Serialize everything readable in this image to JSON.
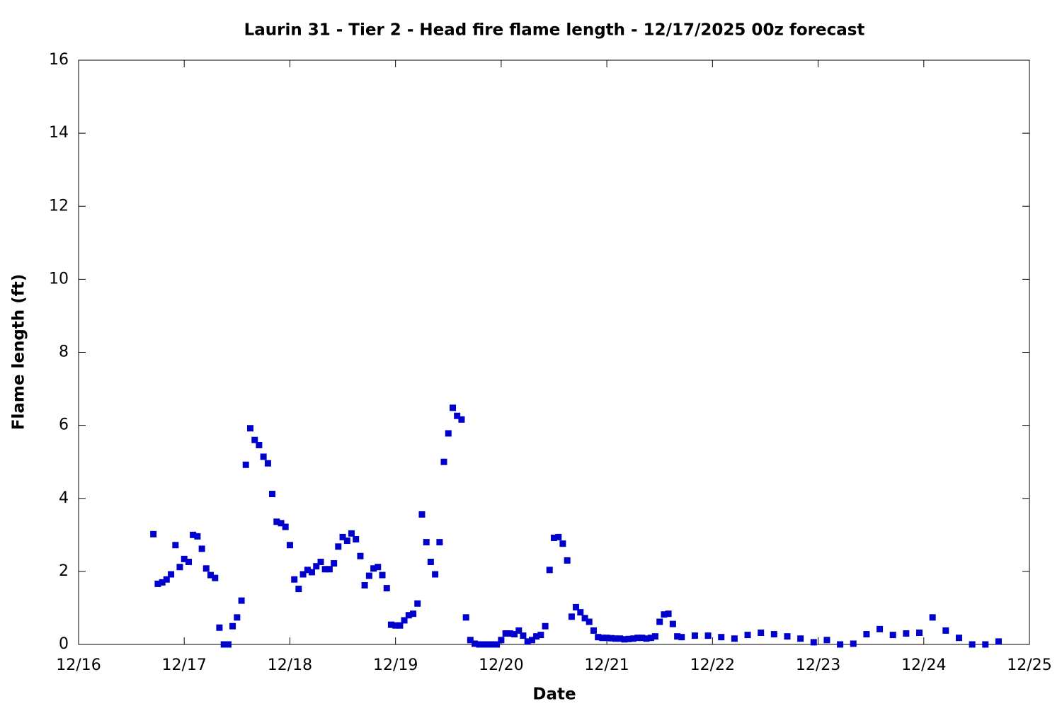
{
  "chart_data": {
    "type": "scatter",
    "title": "Laurin 31 - Tier 2 - Head fire flame length - 12/17/2025 00z forecast",
    "x_label": "Date",
    "y_label": "Flame length (ft)",
    "xlim": [
      0,
      9
    ],
    "xticks": [
      {
        "value": 0,
        "label": "12/16"
      },
      {
        "value": 1,
        "label": "12/17"
      },
      {
        "value": 2,
        "label": "12/18"
      },
      {
        "value": 3,
        "label": "12/19"
      },
      {
        "value": 4,
        "label": "12/20"
      },
      {
        "value": 5,
        "label": "12/21"
      },
      {
        "value": 6,
        "label": "12/22"
      },
      {
        "value": 7,
        "label": "12/23"
      },
      {
        "value": 8,
        "label": "12/24"
      },
      {
        "value": 9,
        "label": "12/25"
      }
    ],
    "ylim": [
      0,
      16
    ],
    "yticks": [
      0,
      2,
      4,
      6,
      8,
      10,
      12,
      14,
      16
    ],
    "color": "#0000cc",
    "x": [
      0.708,
      0.75,
      0.792,
      0.833,
      0.875,
      0.917,
      0.958,
      1,
      1.042,
      1.083,
      1.125,
      1.167,
      1.208,
      1.25,
      1.292,
      1.333,
      1.375,
      1.417,
      1.458,
      1.5,
      1.542,
      1.583,
      1.625,
      1.667,
      1.708,
      1.75,
      1.792,
      1.833,
      1.875,
      1.917,
      1.958,
      2,
      2.042,
      2.083,
      2.125,
      2.167,
      2.208,
      2.25,
      2.292,
      2.333,
      2.375,
      2.417,
      2.458,
      2.5,
      2.542,
      2.583,
      2.625,
      2.667,
      2.708,
      2.75,
      2.792,
      2.833,
      2.875,
      2.917,
      2.958,
      3,
      3.042,
      3.083,
      3.125,
      3.167,
      3.208,
      3.25,
      3.292,
      3.333,
      3.375,
      3.417,
      3.458,
      3.5,
      3.542,
      3.583,
      3.625,
      3.667,
      3.708,
      3.75,
      3.792,
      3.833,
      3.875,
      3.917,
      3.958,
      4,
      4.042,
      4.083,
      4.125,
      4.167,
      4.208,
      4.25,
      4.292,
      4.333,
      4.375,
      4.417,
      4.458,
      4.5,
      4.542,
      4.583,
      4.625,
      4.667,
      4.708,
      4.75,
      4.792,
      4.833,
      4.875,
      4.917,
      4.958,
      5,
      5.042,
      5.083,
      5.125,
      5.167,
      5.208,
      5.25,
      5.292,
      5.333,
      5.375,
      5.417,
      5.458,
      5.5,
      5.542,
      5.583,
      5.625,
      5.667,
      5.708,
      5.833,
      5.958,
      6.083,
      6.208,
      6.333,
      6.458,
      6.583,
      6.708,
      6.833,
      6.958,
      7.083,
      7.208,
      7.333,
      7.458,
      7.583,
      7.708,
      7.833,
      7.958,
      8.083,
      8.208,
      8.333,
      8.458,
      8.583,
      8.708
    ],
    "values": [
      3.02,
      1.66,
      1.7,
      1.78,
      1.92,
      2.72,
      2.12,
      2.34,
      2.26,
      3.0,
      2.96,
      2.62,
      2.08,
      1.9,
      1.82,
      0.46,
      0,
      0,
      0.5,
      0.74,
      1.2,
      4.92,
      5.92,
      5.6,
      5.46,
      5.14,
      4.96,
      4.12,
      3.36,
      3.32,
      3.22,
      2.72,
      1.78,
      1.52,
      1.92,
      2.04,
      1.98,
      2.14,
      2.26,
      2.06,
      2.06,
      2.22,
      2.68,
      2.94,
      2.84,
      3.04,
      2.88,
      2.42,
      1.62,
      1.88,
      2.08,
      2.12,
      1.9,
      1.54,
      0.54,
      0.52,
      0.52,
      0.66,
      0.8,
      0.84,
      1.12,
      3.56,
      2.8,
      2.26,
      1.92,
      2.8,
      5.0,
      5.78,
      6.48,
      6.26,
      6.16,
      0.74,
      0.12,
      0.02,
      0,
      0,
      0,
      0,
      0,
      0.12,
      0.3,
      0.3,
      0.28,
      0.38,
      0.24,
      0.08,
      0.12,
      0.22,
      0.26,
      0.5,
      2.04,
      2.92,
      2.94,
      2.76,
      2.3,
      0.76,
      1.02,
      0.88,
      0.72,
      0.62,
      0.38,
      0.2,
      0.18,
      0.18,
      0.17,
      0.16,
      0.16,
      0.14,
      0.15,
      0.16,
      0.18,
      0.18,
      0.16,
      0.18,
      0.22,
      0.62,
      0.82,
      0.84,
      0.56,
      0.22,
      0.2,
      0.24,
      0.24,
      0.2,
      0.16,
      0.26,
      0.32,
      0.28,
      0.22,
      0.16,
      0.06,
      0.12,
      0,
      0.02,
      0.28,
      0.42,
      0.26,
      0.3,
      0.32,
      0.74,
      0.38,
      0.18,
      0,
      0,
      0.08
    ]
  }
}
